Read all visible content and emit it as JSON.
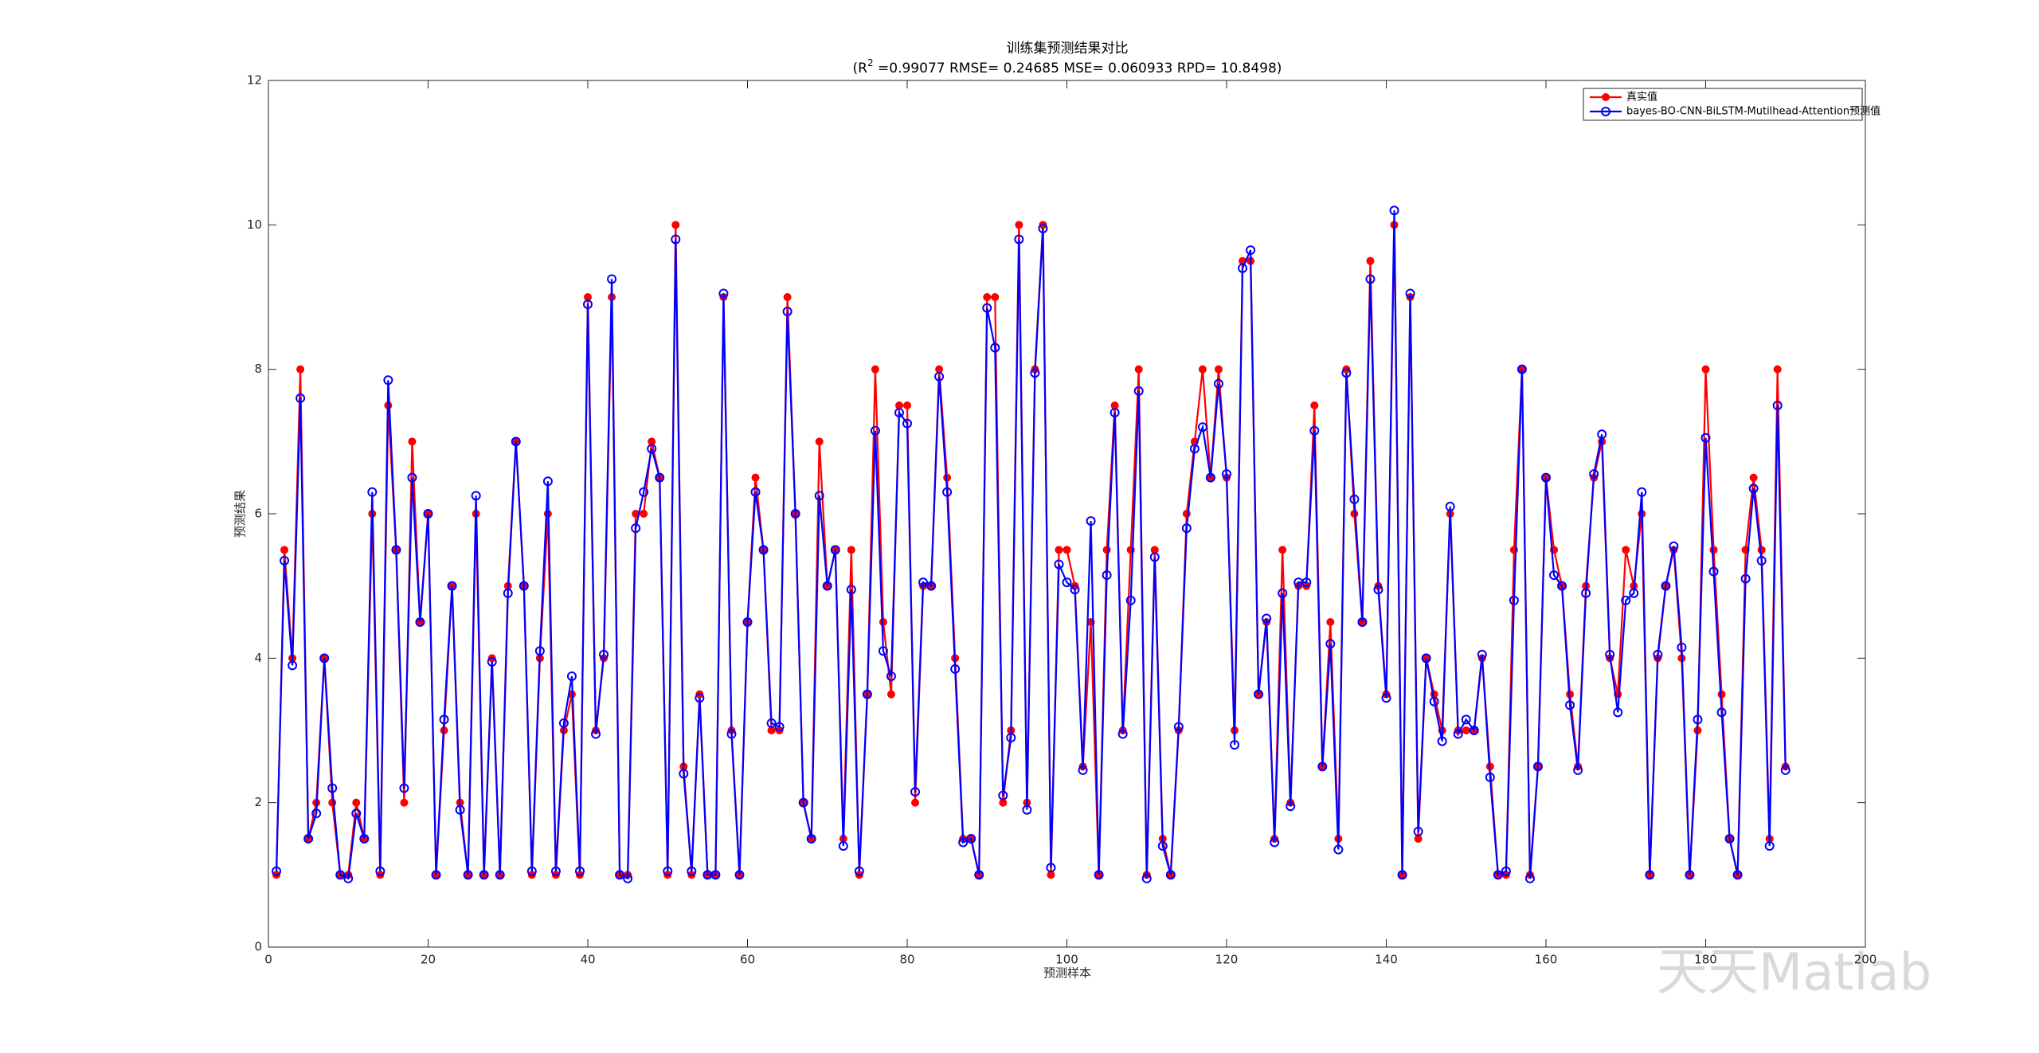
{
  "chart_data": {
    "type": "line",
    "title": "训练集预测结果对比",
    "subtitle": [
      "(R",
      "2",
      " =0.99077 RMSE= 0.24685 MSE= 0.060933 RPD= 10.8498)"
    ],
    "xlabel": "预测样本",
    "ylabel": "预测结果",
    "annotation": "天天Matlab",
    "xlim": [
      0,
      200
    ],
    "xticks": [
      0,
      20,
      40,
      60,
      80,
      100,
      120,
      140,
      160,
      180,
      200
    ],
    "ylim": [
      0,
      12
    ],
    "yticks": [
      0,
      2,
      4,
      6,
      8,
      10,
      12
    ],
    "legend": "upper right",
    "x": [
      1,
      2,
      3,
      4,
      5,
      6,
      7,
      8,
      9,
      10,
      11,
      12,
      13,
      14,
      15,
      16,
      17,
      18,
      19,
      20,
      21,
      22,
      23,
      24,
      25,
      26,
      27,
      28,
      29,
      30,
      31,
      32,
      33,
      34,
      35,
      36,
      37,
      38,
      39,
      40,
      41,
      42,
      43,
      44,
      45,
      46,
      47,
      48,
      49,
      50,
      51,
      52,
      53,
      54,
      55,
      56,
      57,
      58,
      59,
      60,
      61,
      62,
      63,
      64,
      65,
      66,
      67,
      68,
      69,
      70,
      71,
      72,
      73,
      74,
      75,
      76,
      77,
      78,
      79,
      80,
      81,
      82,
      83,
      84,
      85,
      86,
      87,
      88,
      89,
      90,
      91,
      92,
      93,
      94,
      95,
      96,
      97,
      98,
      99,
      100,
      101,
      102,
      103,
      104,
      105,
      106,
      107,
      108,
      109,
      110,
      111,
      112,
      113,
      114,
      115,
      116,
      117,
      118,
      119,
      120,
      121,
      122,
      123,
      124,
      125,
      126,
      127,
      128,
      129,
      130,
      131,
      132,
      133,
      134,
      135,
      136,
      137,
      138,
      139,
      140,
      141,
      142,
      143,
      144,
      145,
      146,
      147,
      148,
      149,
      150,
      151,
      152,
      153,
      154,
      155,
      156,
      157,
      158,
      159,
      160,
      161,
      162,
      163,
      164,
      165,
      166,
      167,
      168,
      169,
      170,
      171,
      172,
      173,
      174,
      175,
      176,
      177,
      178,
      179,
      180,
      181,
      182,
      183,
      184,
      185,
      186,
      187,
      188,
      189,
      190
    ],
    "series": [
      {
        "name": "真实值",
        "color": "#ff0000",
        "marker": "filled",
        "values": [
          1,
          5.5,
          4,
          8,
          1.5,
          2,
          4,
          2,
          1,
          1,
          2,
          1.5,
          6,
          1,
          7.5,
          5.5,
          2,
          7,
          4.5,
          6,
          1,
          3,
          5,
          2,
          1,
          6,
          1,
          4,
          1,
          5,
          7,
          5,
          1,
          4,
          6,
          1,
          3,
          3.5,
          1,
          9,
          3,
          4,
          9,
          1,
          1,
          6,
          6,
          7,
          6.5,
          1,
          10,
          2.5,
          1,
          3.5,
          1,
          1,
          9,
          3,
          1,
          4.5,
          6.5,
          5.5,
          3,
          3,
          9,
          6,
          2,
          1.5,
          7,
          5,
          5.5,
          1.5,
          5.5,
          1,
          3.5,
          8,
          4.5,
          3.5,
          7.5,
          7.5,
          2,
          5,
          5,
          8,
          6.5,
          4,
          1.5,
          1.5,
          1,
          9,
          9,
          2,
          3,
          10,
          2,
          8,
          10,
          1,
          5.5,
          5.5,
          5,
          2.5,
          4.5,
          1,
          5.5,
          7.5,
          3,
          5.5,
          8,
          1,
          5.5,
          1.5,
          1,
          3,
          6,
          7,
          8,
          6.5,
          8,
          6.5,
          3,
          9.5,
          9.5,
          3.5,
          4.5,
          1.5,
          5.5,
          2,
          5,
          5,
          7.5,
          2.5,
          4.5,
          1.5,
          8,
          6,
          4.5,
          9.5,
          5,
          3.5,
          10,
          1,
          9,
          1.5,
          4,
          3.5,
          3,
          6,
          3,
          3,
          3,
          4,
          2.5,
          1,
          1,
          5.5,
          8,
          1,
          2.5,
          6.5,
          5.5,
          5,
          3.5,
          2.5,
          5,
          6.5,
          7,
          4,
          3.5,
          5.5,
          5,
          6,
          1,
          4,
          5,
          5.5,
          4,
          1,
          3,
          8,
          5.5,
          3.5,
          1.5,
          1,
          5.5,
          6.5,
          5.5,
          1.5,
          8,
          2.5
        ]
      },
      {
        "name": "bayes-BO-CNN-BiLSTM-Mutilhead-Attention预测值",
        "color": "#0000ff",
        "marker": "open",
        "values": [
          1.05,
          5.35,
          3.9,
          7.6,
          1.5,
          1.85,
          4,
          2.2,
          1,
          0.95,
          1.85,
          1.5,
          6.3,
          1.05,
          7.85,
          5.5,
          2.2,
          6.5,
          4.5,
          6,
          1,
          3.15,
          5,
          1.9,
          1,
          6.25,
          1,
          3.95,
          1,
          4.9,
          7,
          5,
          1.05,
          4.1,
          6.45,
          1.05,
          3.1,
          3.75,
          1.05,
          8.9,
          2.95,
          4.05,
          9.25,
          1,
          0.95,
          5.8,
          6.3,
          6.9,
          6.5,
          1.05,
          9.8,
          2.4,
          1.05,
          3.45,
          1,
          1,
          9.05,
          2.95,
          1,
          4.5,
          6.3,
          5.5,
          3.1,
          3.05,
          8.8,
          6,
          2,
          1.5,
          6.25,
          5,
          5.5,
          1.4,
          4.95,
          1.05,
          3.5,
          7.15,
          4.1,
          3.75,
          7.4,
          7.25,
          2.15,
          5.05,
          5,
          7.9,
          6.3,
          3.85,
          1.45,
          1.5,
          1,
          8.85,
          8.3,
          2.1,
          2.9,
          9.8,
          1.9,
          7.95,
          9.95,
          1.1,
          5.3,
          5.05,
          4.95,
          2.45,
          5.9,
          1,
          5.15,
          7.4,
          2.95,
          4.8,
          7.7,
          0.95,
          5.4,
          1.4,
          1,
          3.05,
          5.8,
          6.9,
          7.2,
          6.5,
          7.8,
          6.55,
          2.8,
          9.4,
          9.65,
          3.5,
          4.55,
          1.45,
          4.9,
          1.95,
          5.05,
          5.05,
          7.15,
          2.5,
          4.2,
          1.35,
          7.95,
          6.2,
          4.5,
          9.25,
          4.95,
          3.45,
          10.2,
          1,
          9.05,
          1.6,
          4,
          3.4,
          2.85,
          6.1,
          2.95,
          3.15,
          3,
          4.05,
          2.35,
          1,
          1.05,
          4.8,
          8,
          0.95,
          2.5,
          6.5,
          5.15,
          5,
          3.35,
          2.45,
          4.9,
          6.55,
          7.1,
          4.05,
          3.25,
          4.8,
          4.9,
          6.3,
          1,
          4.05,
          5,
          5.55,
          4.15,
          1,
          3.15,
          7.05,
          5.2,
          3.25,
          1.5,
          1,
          5.1,
          6.35,
          5.35,
          1.4,
          7.5,
          2.45
        ]
      }
    ]
  }
}
